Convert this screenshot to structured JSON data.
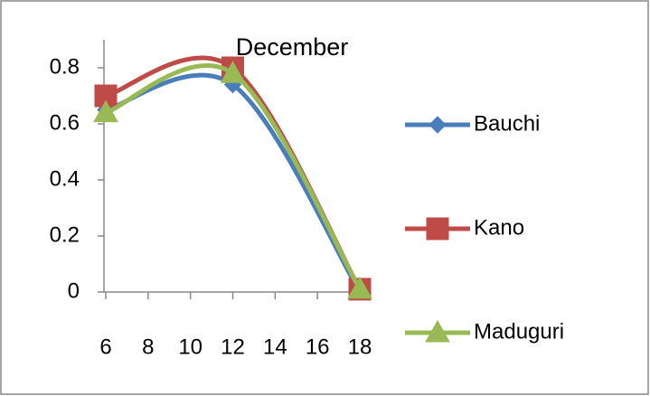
{
  "chart_data": {
    "type": "scatter-smooth",
    "title": "December",
    "series": [
      {
        "name": "Bauchi",
        "color": "#4a7ebb",
        "marker": "diamond",
        "x": [
          6,
          12,
          18
        ],
        "values": [
          0.65,
          0.74,
          0
        ]
      },
      {
        "name": "Kano",
        "color": "#be4b48",
        "marker": "square",
        "x": [
          6,
          12,
          18
        ],
        "values": [
          0.7,
          0.8,
          0.01
        ]
      },
      {
        "name": "Maduguri",
        "color": "#98b954",
        "marker": "triangle",
        "x": [
          6,
          12,
          18
        ],
        "values": [
          0.64,
          0.78,
          0.01
        ]
      }
    ],
    "xlim": [
      6,
      18
    ],
    "xticks": [
      6,
      8,
      10,
      12,
      14,
      16,
      18
    ],
    "ylim": [
      0,
      0.9
    ],
    "yticks": [
      0,
      0.2,
      0.4,
      0.6,
      0.8
    ],
    "legend": "right"
  }
}
